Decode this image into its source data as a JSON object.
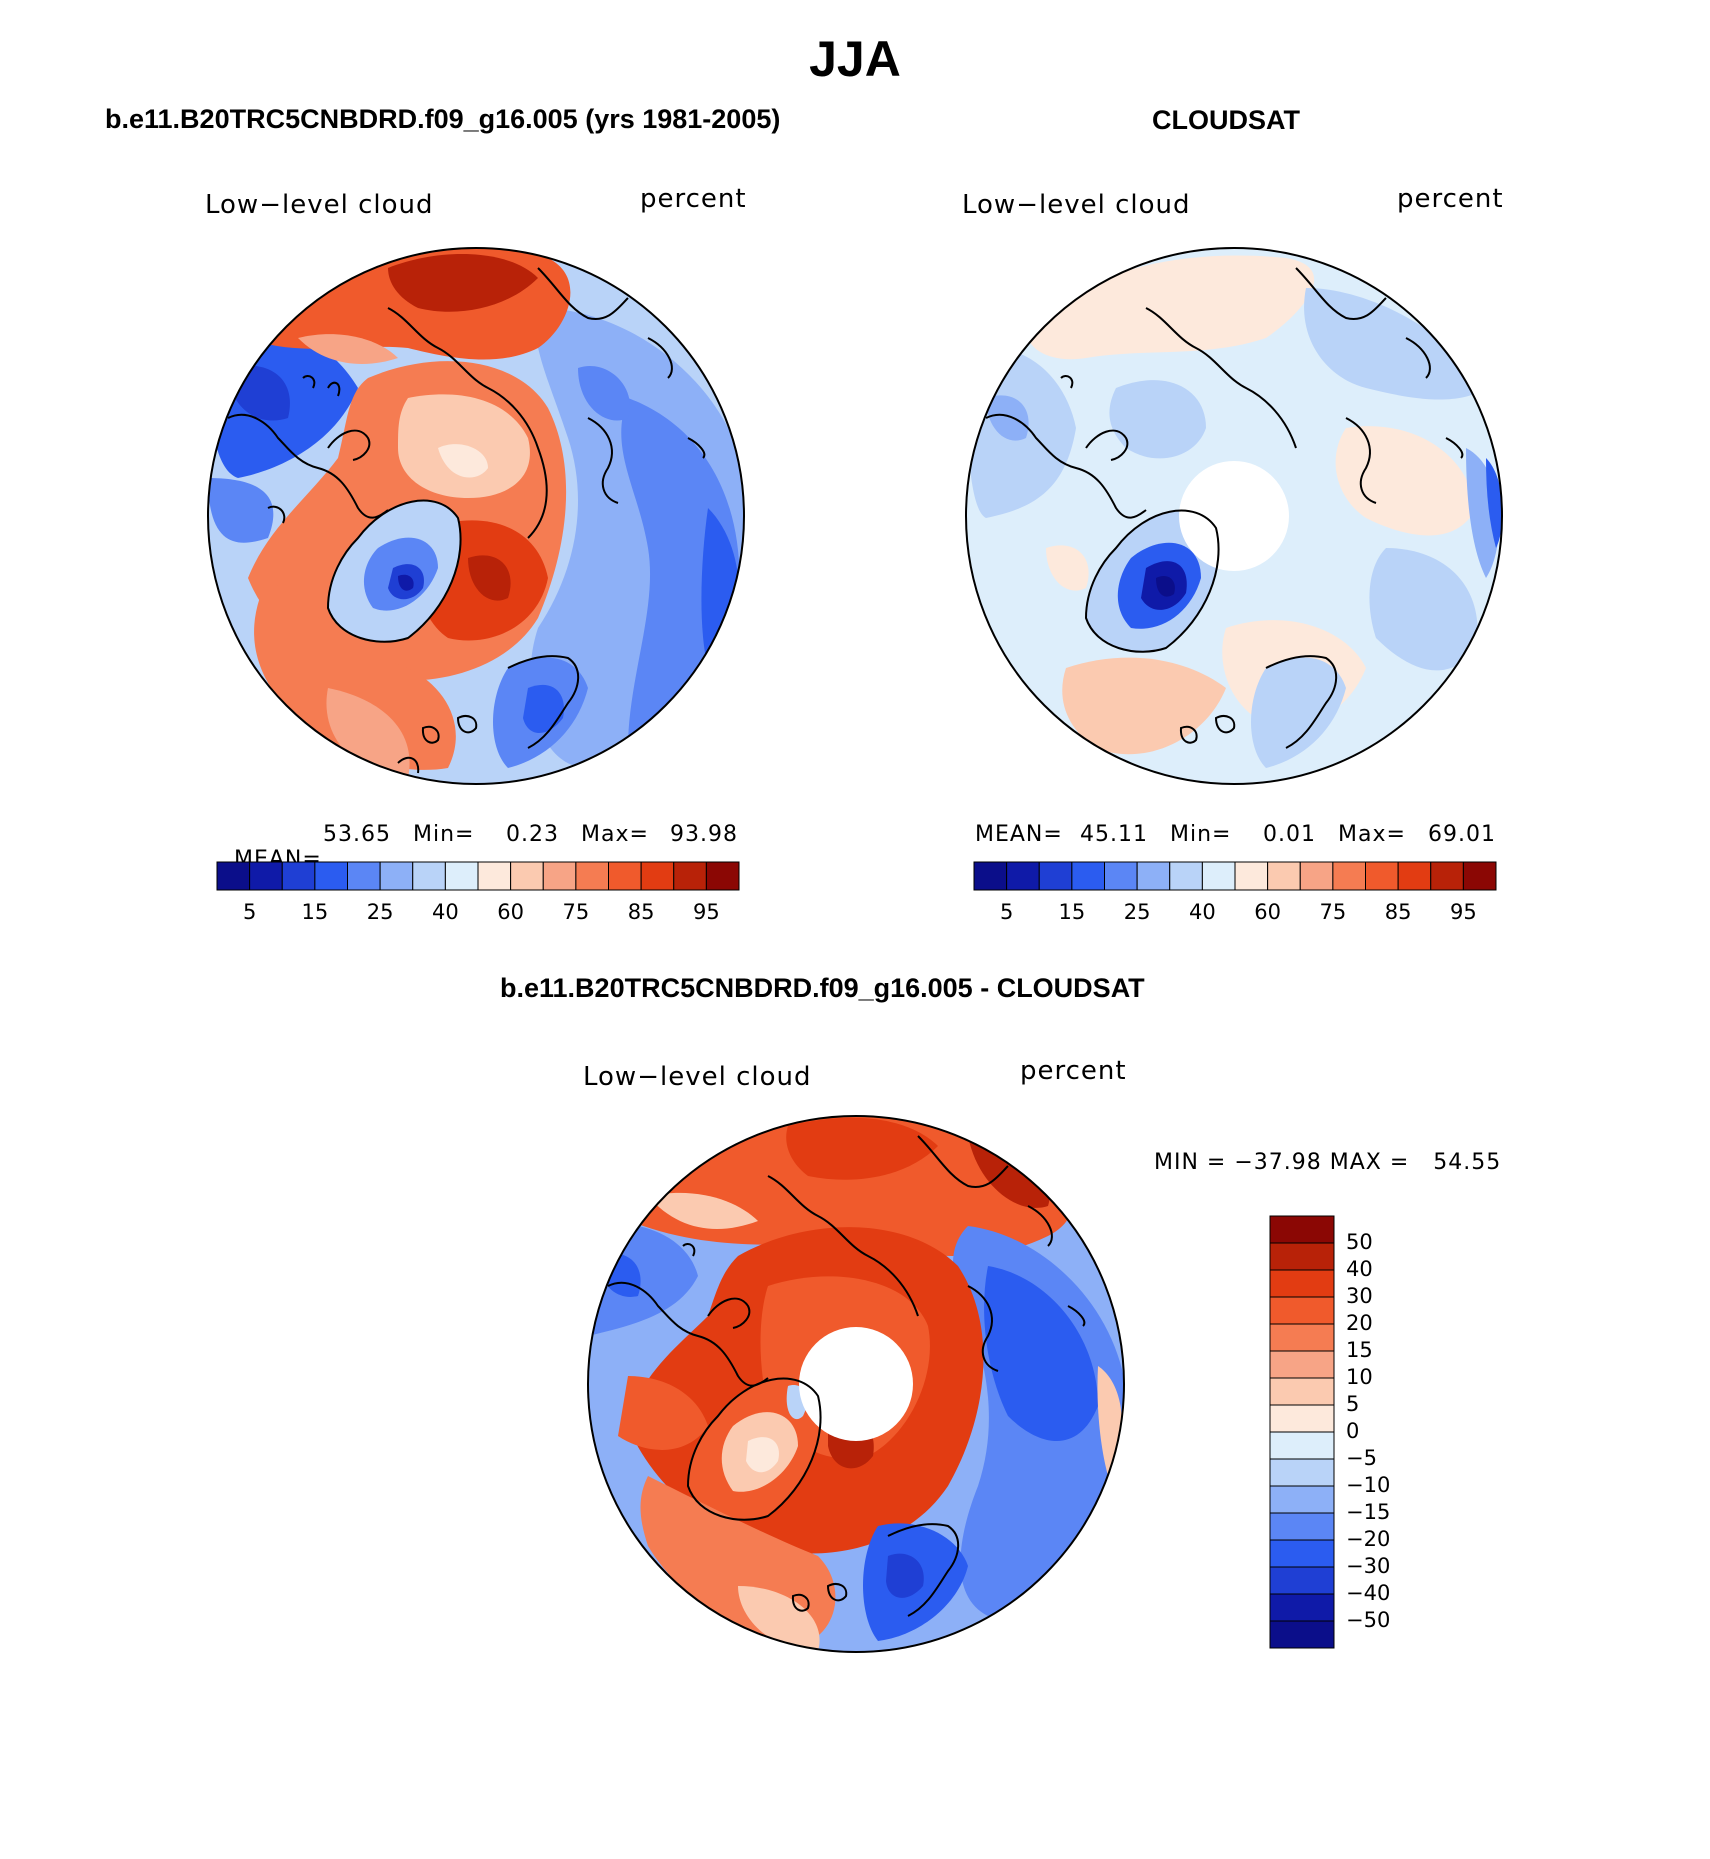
{
  "figure": {
    "title": "JJA"
  },
  "panel_model": {
    "heading": "b.e11.B20TRC5CNBDRD.f09_g16.005 (yrs 1981-2005)",
    "variable": "Low−level cloud",
    "units": "percent",
    "stats": {
      "mean_label": "MEAN=",
      "mean_value": "53.65",
      "min_label": "Min=",
      "min_value": "0.23",
      "max_label": "Max=",
      "max_value": "93.98"
    }
  },
  "panel_obs": {
    "heading": "CLOUDSAT",
    "variable": "Low−level cloud",
    "units": "percent",
    "stats": {
      "mean_label": "MEAN=",
      "mean_value": "45.11",
      "min_label": "Min=",
      "min_value": "0.01",
      "max_label": "Max=",
      "max_value": "69.01"
    }
  },
  "panel_diff": {
    "heading": "b.e11.B20TRC5CNBDRD.f09_g16.005 - CLOUDSAT",
    "variable": "Low−level cloud",
    "units": "percent",
    "stats_text": "MIN = −37.98 MAX =   54.55"
  },
  "colorbar_abs": {
    "colors": [
      "#0b0e8a",
      "#0f1aa8",
      "#1f3fd4",
      "#2b5cf0",
      "#5b86f5",
      "#8db0f7",
      "#b9d3f8",
      "#ddeefb",
      "#fde9dc",
      "#fbcab0",
      "#f7a486",
      "#f57c52",
      "#f05a2c",
      "#e23c12",
      "#b82208",
      "#8b0704"
    ],
    "labels": [
      "5",
      "15",
      "25",
      "40",
      "60",
      "75",
      "85",
      "95"
    ]
  },
  "colorbar_diff": {
    "colors": [
      "#8b0704",
      "#b82208",
      "#e23c12",
      "#f05a2c",
      "#f57c52",
      "#f7a486",
      "#fbcab0",
      "#fde9dc",
      "#ddeefb",
      "#b9d3f8",
      "#8db0f7",
      "#5b86f5",
      "#2b5cf0",
      "#1f3fd4",
      "#0f1aa8",
      "#0b0e8a"
    ],
    "labels": [
      "50",
      "40",
      "30",
      "20",
      "15",
      "10",
      "5",
      "0",
      "−5",
      "−10",
      "−15",
      "−20",
      "−30",
      "−40",
      "−50"
    ]
  }
}
